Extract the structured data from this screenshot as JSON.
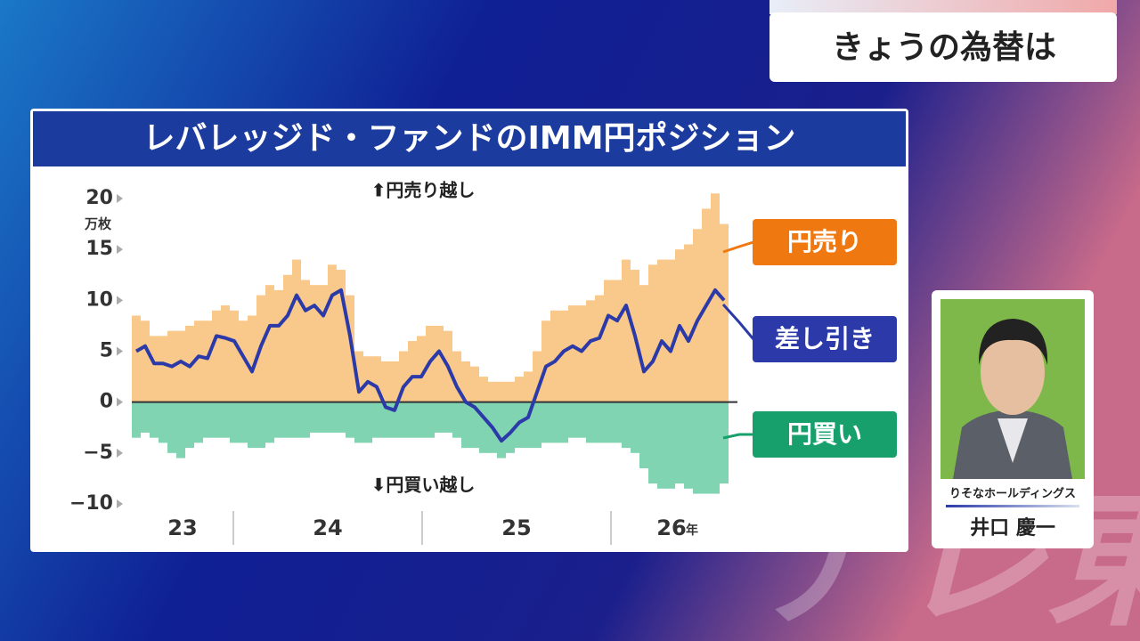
{
  "header": {
    "title": "きょうの為替は"
  },
  "watermark": "テレ東",
  "presenter": {
    "company": "りそなホールディングス",
    "name": "井口 慶一"
  },
  "chart_data": {
    "type": "bar-line",
    "title": "レバレッジド・ファンドのIMM円ポジション",
    "y_unit": "万枚",
    "annotations": {
      "up": "⬆円売り越し",
      "down": "⬇円買い越し"
    },
    "x_group_labels": [
      "23",
      "24",
      "25",
      "26"
    ],
    "x_unit": "年",
    "ylim": [
      -10,
      20
    ],
    "yticks": [
      20,
      15,
      10,
      5,
      0,
      {
        "value": -5,
        "label": "−5"
      },
      {
        "value": -10,
        "label": "−10"
      }
    ],
    "series": [
      {
        "name": "円売り",
        "color": "#f8c98a",
        "label_color": "#f07810",
        "kind": "bar",
        "values": [
          8.5,
          8,
          6.5,
          6.5,
          7,
          7,
          7.5,
          8,
          8,
          9,
          9.5,
          9,
          8,
          8.5,
          10.5,
          11.5,
          11,
          12.5,
          14,
          12,
          11.5,
          11.5,
          13.5,
          13,
          10.5,
          5,
          4.5,
          4.5,
          4,
          4,
          5,
          6,
          6.5,
          7.5,
          7.5,
          7,
          5,
          4,
          3.5,
          2.5,
          2,
          2,
          2,
          2.5,
          3,
          5,
          8,
          9,
          9,
          9.5,
          9.5,
          10,
          10.5,
          12,
          12,
          14,
          13,
          11.5,
          13.5,
          14,
          14,
          15,
          15.5,
          17,
          19,
          20.5,
          17.5
        ]
      },
      {
        "name": "円買い",
        "color": "#80d4b2",
        "label_color": "#18a06c",
        "kind": "bar",
        "values": [
          -3.5,
          -3,
          -3.5,
          -4,
          -5,
          -5.5,
          -4.5,
          -4,
          -3.5,
          -3.5,
          -3.5,
          -4,
          -4,
          -4.5,
          -4.5,
          -4,
          -3.5,
          -3.5,
          -3.5,
          -3.5,
          -3,
          -3,
          -3,
          -3,
          -3.5,
          -4,
          -4,
          -3.5,
          -3.5,
          -3.5,
          -3.5,
          -3.5,
          -3.5,
          -3.5,
          -3,
          -3,
          -3.5,
          -4.5,
          -4.5,
          -5,
          -5,
          -5.5,
          -5,
          -4.5,
          -4.5,
          -4.5,
          -4,
          -4,
          -4,
          -3.5,
          -3.5,
          -4,
          -4,
          -4,
          -4,
          -4.5,
          -5,
          -6.5,
          -8,
          -8.5,
          -8.5,
          -8,
          -8.5,
          -9,
          -9,
          -9,
          -8
        ]
      },
      {
        "name": "差し引き",
        "color": "#2b3aa8",
        "label_color": "#2b3aa8",
        "kind": "line",
        "values": [
          5,
          5.5,
          3.8,
          3.8,
          3.5,
          4,
          3.5,
          4.5,
          4.3,
          6.5,
          6.3,
          6,
          4.5,
          3,
          5.5,
          7.5,
          7.5,
          8.5,
          10.5,
          9,
          9.5,
          8.5,
          10.5,
          11,
          6.5,
          1,
          2,
          1.5,
          -0.5,
          -0.8,
          1.5,
          2.5,
          2.5,
          4,
          5,
          3.5,
          1.5,
          0,
          -0.5,
          -1.5,
          -2.5,
          -3.8,
          -3,
          -2,
          -1.5,
          1,
          3.5,
          4,
          5,
          5.5,
          5,
          6,
          6.3,
          8.5,
          8,
          9.5,
          6.5,
          3,
          4,
          6,
          5,
          7.5,
          6,
          8,
          9.5,
          11,
          10
        ]
      }
    ]
  }
}
